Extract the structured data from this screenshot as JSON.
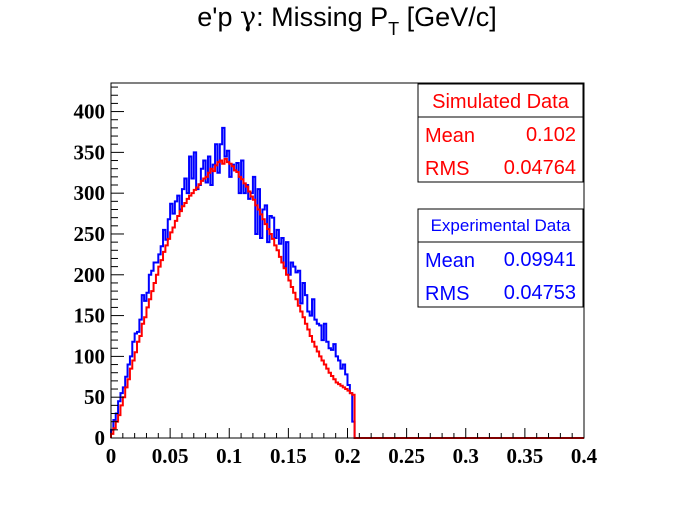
{
  "chart_data": {
    "type": "histogram",
    "title": {
      "pre": "e'p ",
      "gamma": "γ",
      "mid": ": Missing P",
      "sub": "T",
      "post": " [GeV/c]"
    },
    "xlabel": "",
    "ylabel": "",
    "xlim": [
      0,
      0.4
    ],
    "ylim": [
      0,
      435
    ],
    "x_ticks": [
      "0",
      "0.05",
      "0.1",
      "0.15",
      "0.2",
      "0.25",
      "0.3",
      "0.35",
      "0.4"
    ],
    "y_ticks": [
      "0",
      "50",
      "100",
      "150",
      "200",
      "250",
      "300",
      "350",
      "400"
    ],
    "bin_width": 0.002,
    "grid": false,
    "series": [
      {
        "key": "experimental",
        "color": "#0000ff",
        "points": [
          [
            0,
            10
          ],
          [
            0.002,
            22
          ],
          [
            0.004,
            30
          ],
          [
            0.006,
            45
          ],
          [
            0.008,
            55
          ],
          [
            0.01,
            62
          ],
          [
            0.012,
            75
          ],
          [
            0.014,
            90
          ],
          [
            0.016,
            100
          ],
          [
            0.018,
            118
          ],
          [
            0.02,
            128
          ],
          [
            0.022,
            130
          ],
          [
            0.024,
            145
          ],
          [
            0.026,
            175
          ],
          [
            0.028,
            168
          ],
          [
            0.03,
            178
          ],
          [
            0.032,
            200
          ],
          [
            0.034,
            205
          ],
          [
            0.036,
            215
          ],
          [
            0.038,
            215
          ],
          [
            0.04,
            225
          ],
          [
            0.042,
            235
          ],
          [
            0.044,
            255
          ],
          [
            0.046,
            243
          ],
          [
            0.048,
            268
          ],
          [
            0.05,
            287
          ],
          [
            0.052,
            275
          ],
          [
            0.054,
            290
          ],
          [
            0.056,
            297
          ],
          [
            0.058,
            280
          ],
          [
            0.06,
            305
          ],
          [
            0.062,
            318
          ],
          [
            0.064,
            300
          ],
          [
            0.066,
            345
          ],
          [
            0.068,
            318
          ],
          [
            0.07,
            350
          ],
          [
            0.072,
            305
          ],
          [
            0.074,
            310
          ],
          [
            0.076,
            330
          ],
          [
            0.078,
            340
          ],
          [
            0.08,
            313
          ],
          [
            0.082,
            345
          ],
          [
            0.084,
            310
          ],
          [
            0.086,
            335
          ],
          [
            0.088,
            360
          ],
          [
            0.09,
            325
          ],
          [
            0.092,
            360
          ],
          [
            0.094,
            380
          ],
          [
            0.096,
            345
          ],
          [
            0.098,
            352
          ],
          [
            0.1,
            320
          ],
          [
            0.102,
            335
          ],
          [
            0.104,
            328
          ],
          [
            0.106,
            337
          ],
          [
            0.108,
            300
          ],
          [
            0.11,
            340
          ],
          [
            0.112,
            300
          ],
          [
            0.114,
            310
          ],
          [
            0.116,
            293
          ],
          [
            0.118,
            300
          ],
          [
            0.12,
            320
          ],
          [
            0.122,
            250
          ],
          [
            0.124,
            305
          ],
          [
            0.126,
            245
          ],
          [
            0.128,
            280
          ],
          [
            0.13,
            285
          ],
          [
            0.132,
            240
          ],
          [
            0.134,
            272
          ],
          [
            0.136,
            270
          ],
          [
            0.138,
            245
          ],
          [
            0.14,
            255
          ],
          [
            0.142,
            238
          ],
          [
            0.144,
            245
          ],
          [
            0.146,
            210
          ],
          [
            0.148,
            240
          ],
          [
            0.15,
            200
          ],
          [
            0.152,
            215
          ],
          [
            0.154,
            210
          ],
          [
            0.156,
            203
          ],
          [
            0.158,
            205
          ],
          [
            0.16,
            165
          ],
          [
            0.162,
            190
          ],
          [
            0.164,
            175
          ],
          [
            0.166,
            155
          ],
          [
            0.168,
            150
          ],
          [
            0.17,
            170
          ],
          [
            0.172,
            145
          ],
          [
            0.174,
            140
          ],
          [
            0.176,
            138
          ],
          [
            0.178,
            120
          ],
          [
            0.18,
            140
          ],
          [
            0.182,
            118
          ],
          [
            0.184,
            110
          ],
          [
            0.186,
            108
          ],
          [
            0.188,
            115
          ],
          [
            0.19,
            100
          ],
          [
            0.192,
            95
          ],
          [
            0.194,
            85
          ],
          [
            0.196,
            90
          ],
          [
            0.198,
            78
          ],
          [
            0.2,
            65
          ],
          [
            0.202,
            55
          ],
          [
            0.204,
            20
          ],
          [
            0.206,
            0
          ],
          [
            0.4,
            0
          ]
        ]
      },
      {
        "key": "simulated",
        "color": "#ff0000",
        "points": [
          [
            0,
            5
          ],
          [
            0.002,
            12
          ],
          [
            0.004,
            20
          ],
          [
            0.006,
            28
          ],
          [
            0.008,
            40
          ],
          [
            0.01,
            50
          ],
          [
            0.012,
            62
          ],
          [
            0.014,
            72
          ],
          [
            0.016,
            85
          ],
          [
            0.018,
            95
          ],
          [
            0.02,
            105
          ],
          [
            0.022,
            118
          ],
          [
            0.024,
            125
          ],
          [
            0.026,
            140
          ],
          [
            0.028,
            148
          ],
          [
            0.03,
            160
          ],
          [
            0.032,
            170
          ],
          [
            0.034,
            180
          ],
          [
            0.036,
            190
          ],
          [
            0.038,
            200
          ],
          [
            0.04,
            210
          ],
          [
            0.042,
            218
          ],
          [
            0.044,
            228
          ],
          [
            0.046,
            236
          ],
          [
            0.048,
            244
          ],
          [
            0.05,
            252
          ],
          [
            0.052,
            258
          ],
          [
            0.054,
            266
          ],
          [
            0.056,
            272
          ],
          [
            0.058,
            278
          ],
          [
            0.06,
            284
          ],
          [
            0.062,
            288
          ],
          [
            0.064,
            293
          ],
          [
            0.066,
            297
          ],
          [
            0.068,
            300
          ],
          [
            0.07,
            304
          ],
          [
            0.072,
            307
          ],
          [
            0.074,
            311
          ],
          [
            0.076,
            315
          ],
          [
            0.078,
            318
          ],
          [
            0.08,
            320
          ],
          [
            0.082,
            325
          ],
          [
            0.084,
            330
          ],
          [
            0.086,
            327
          ],
          [
            0.088,
            334
          ],
          [
            0.09,
            338
          ],
          [
            0.092,
            340
          ],
          [
            0.094,
            336
          ],
          [
            0.096,
            342
          ],
          [
            0.098,
            338
          ],
          [
            0.1,
            336
          ],
          [
            0.102,
            333
          ],
          [
            0.104,
            328
          ],
          [
            0.106,
            326
          ],
          [
            0.108,
            320
          ],
          [
            0.11,
            317
          ],
          [
            0.112,
            312
          ],
          [
            0.114,
            308
          ],
          [
            0.116,
            302
          ],
          [
            0.118,
            296
          ],
          [
            0.12,
            292
          ],
          [
            0.122,
            285
          ],
          [
            0.124,
            280
          ],
          [
            0.126,
            274
          ],
          [
            0.128,
            268
          ],
          [
            0.13,
            262
          ],
          [
            0.132,
            256
          ],
          [
            0.134,
            250
          ],
          [
            0.136,
            244
          ],
          [
            0.138,
            236
          ],
          [
            0.14,
            230
          ],
          [
            0.142,
            222
          ],
          [
            0.144,
            215
          ],
          [
            0.146,
            208
          ],
          [
            0.148,
            200
          ],
          [
            0.15,
            193
          ],
          [
            0.152,
            185
          ],
          [
            0.154,
            178
          ],
          [
            0.156,
            170
          ],
          [
            0.158,
            162
          ],
          [
            0.16,
            155
          ],
          [
            0.162,
            148
          ],
          [
            0.164,
            140
          ],
          [
            0.166,
            133
          ],
          [
            0.168,
            125
          ],
          [
            0.17,
            118
          ],
          [
            0.172,
            112
          ],
          [
            0.174,
            106
          ],
          [
            0.176,
            100
          ],
          [
            0.178,
            95
          ],
          [
            0.18,
            90
          ],
          [
            0.182,
            85
          ],
          [
            0.184,
            80
          ],
          [
            0.186,
            76
          ],
          [
            0.188,
            72
          ],
          [
            0.19,
            68
          ],
          [
            0.192,
            66
          ],
          [
            0.194,
            64
          ],
          [
            0.196,
            62
          ],
          [
            0.198,
            60
          ],
          [
            0.2,
            58
          ],
          [
            0.202,
            55
          ],
          [
            0.204,
            53
          ],
          [
            0.206,
            0
          ],
          [
            0.4,
            0
          ]
        ]
      }
    ],
    "stat_boxes": [
      {
        "key": "simulated",
        "title": "Simulated Data",
        "color": "#ff0000",
        "rows": [
          {
            "label": "Mean",
            "value": "0.102"
          },
          {
            "label": "RMS",
            "value": "0.04764"
          }
        ]
      },
      {
        "key": "experimental",
        "title": "Experimental Data",
        "color": "#0000ff",
        "rows": [
          {
            "label": "Mean",
            "value": "0.09941"
          },
          {
            "label": "RMS",
            "value": "0.04753"
          }
        ]
      }
    ]
  }
}
